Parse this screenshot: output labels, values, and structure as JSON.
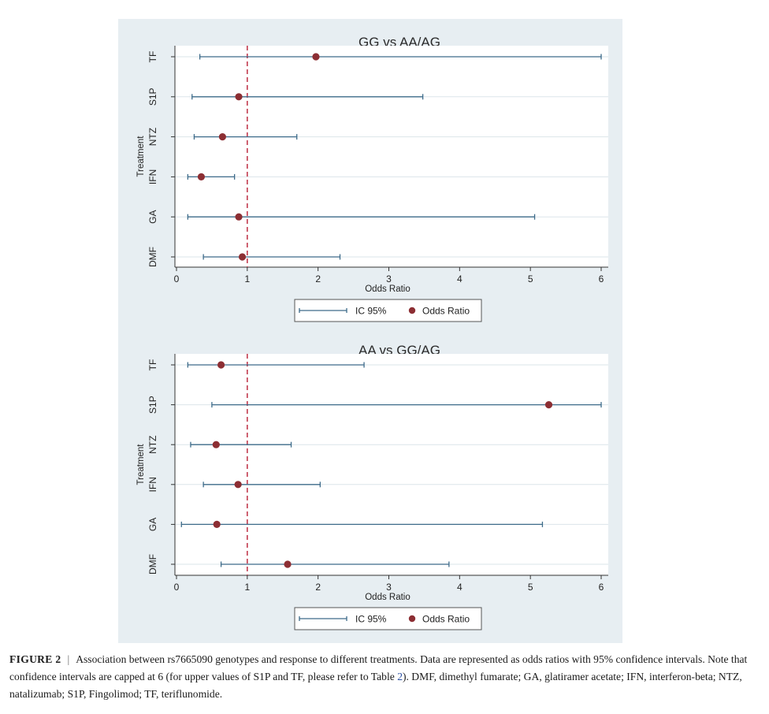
{
  "chart_data": [
    {
      "type": "forest",
      "title": "GG vs AA/AG",
      "xlabel": "Odds Ratio",
      "ylabel": "Treatment",
      "xlim": [
        0,
        6
      ],
      "xticks": [
        0,
        1,
        2,
        3,
        4,
        5,
        6
      ],
      "reference_line": 1,
      "categories": [
        "TF",
        "S1P",
        "NTZ",
        "IFN",
        "GA",
        "DMF"
      ],
      "odds_ratio": [
        1.97,
        0.88,
        0.65,
        0.35,
        0.88,
        0.93
      ],
      "ci_lower": [
        0.33,
        0.22,
        0.25,
        0.16,
        0.16,
        0.38
      ],
      "ci_upper": [
        6.0,
        3.48,
        1.7,
        0.82,
        5.06,
        2.31
      ],
      "legend": [
        "IC 95%",
        "Odds Ratio"
      ]
    },
    {
      "type": "forest",
      "title": "AA vs GG/AG",
      "xlabel": "Odds Ratio",
      "ylabel": "Treatment",
      "xlim": [
        0,
        6
      ],
      "xticks": [
        0,
        1,
        2,
        3,
        4,
        5,
        6
      ],
      "reference_line": 1,
      "categories": [
        "TF",
        "S1P",
        "NTZ",
        "IFN",
        "GA",
        "DMF"
      ],
      "odds_ratio": [
        0.63,
        5.26,
        0.56,
        0.87,
        0.57,
        1.57
      ],
      "ci_lower": [
        0.16,
        0.5,
        0.2,
        0.38,
        0.07,
        0.63
      ],
      "ci_upper": [
        2.65,
        6.0,
        1.62,
        2.03,
        5.17,
        3.85
      ],
      "legend": [
        "IC 95%",
        "Odds Ratio"
      ]
    }
  ],
  "colors": {
    "panel_bg": "#e7eef2",
    "plot_bg": "#ffffff",
    "ci_line": "#3d6b8a",
    "point": "#8c2e33",
    "reference_line": "#c23b4e",
    "grid": "#dbe5ea"
  },
  "caption": {
    "figure_number": "FIGURE 2",
    "separator": "|",
    "text_before_ref": "Association between rs7665090 genotypes and response to different treatments. Data are represented as odds ratios with 95% confidence intervals. Note that confidence intervals are capped at 6 (for upper values of S1P and TF, please refer to Table ",
    "ref": "2",
    "text_after_ref": "). DMF, dimethyl fumarate; GA, glatiramer acetate; IFN, interferon-beta; NTZ, natalizumab; S1P, Fingolimod; TF, teriflunomide."
  }
}
